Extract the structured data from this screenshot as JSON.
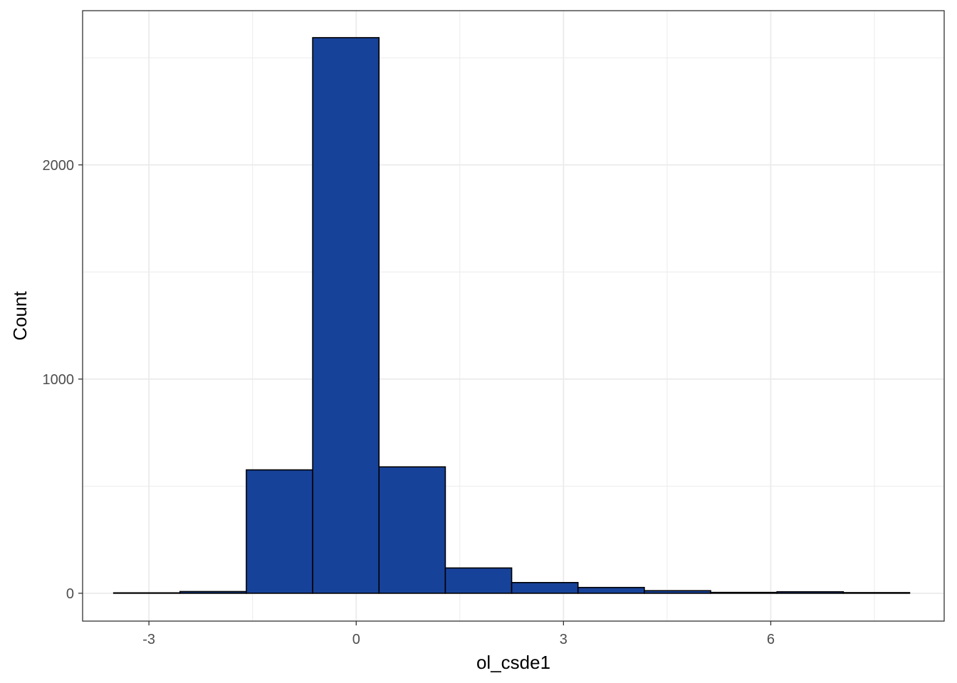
{
  "chart_data": {
    "type": "bar",
    "subtype": "histogram",
    "title": "",
    "xlabel": "ol_csde1",
    "ylabel": "Count",
    "bin_width": 0.96,
    "bins": [
      {
        "center": -3.03,
        "count": 2
      },
      {
        "center": -2.07,
        "count": 8
      },
      {
        "center": -1.11,
        "count": 576
      },
      {
        "center": -0.15,
        "count": 2594
      },
      {
        "center": 0.81,
        "count": 590
      },
      {
        "center": 1.77,
        "count": 118
      },
      {
        "center": 2.73,
        "count": 50
      },
      {
        "center": 3.69,
        "count": 27
      },
      {
        "center": 4.65,
        "count": 12
      },
      {
        "center": 5.61,
        "count": 4
      },
      {
        "center": 6.57,
        "count": 7
      },
      {
        "center": 7.53,
        "count": 3
      }
    ],
    "xlim": [
      -3.96,
      8.51
    ],
    "ylim": [
      -130,
      2720
    ],
    "x_ticks": [
      -3,
      0,
      3,
      6
    ],
    "x_tick_labels": [
      "-3",
      "0",
      "3",
      "6"
    ],
    "y_ticks": [
      0,
      1000,
      2000
    ],
    "y_tick_labels": [
      "0",
      "1000",
      "2000"
    ],
    "x_minor_ticks": [
      -1.5,
      1.5,
      4.5,
      7.5
    ],
    "y_minor_ticks": [
      500,
      1500,
      2500
    ],
    "grid": true,
    "colors": {
      "fill": "#17429A",
      "outline": "#000000",
      "grid": "#EBEBEB",
      "panel_border": "#333333"
    }
  }
}
